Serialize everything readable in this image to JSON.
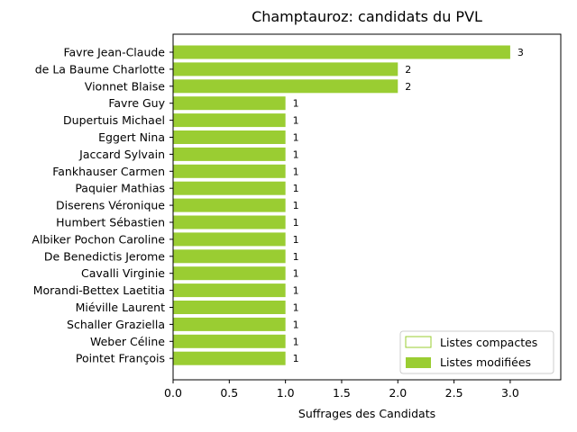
{
  "chart_data": {
    "type": "bar",
    "orientation": "horizontal",
    "title": "Champtauroz: candidats du PVL",
    "xlabel": "Suffrages des Candidats",
    "ylabel": "",
    "xlim": [
      0,
      3.45
    ],
    "xticks": [
      "0.0",
      "0.5",
      "1.0",
      "1.5",
      "2.0",
      "2.5",
      "3.0"
    ],
    "grid": false,
    "legend_position": "lower-right",
    "categories": [
      "Favre Jean-Claude",
      "de La Baume Charlotte",
      "Vionnet Blaise",
      "Favre Guy",
      "Dupertuis Michael",
      "Eggert Nina",
      "Jaccard Sylvain",
      "Fankhauser Carmen",
      "Paquier Mathias",
      "Diserens Véronique",
      "Humbert Sébastien",
      "Albiker Pochon Caroline",
      "De Benedictis Jerome",
      "Cavalli Virginie",
      "Morandi-Bettex Laetitia",
      "Miéville Laurent",
      "Schaller Graziella",
      "Weber Céline",
      "Pointet François"
    ],
    "series": [
      {
        "name": "Listes compactes",
        "color": "#9ACD32",
        "style": "outline",
        "values": [
          0,
          0,
          0,
          0,
          0,
          0,
          0,
          0,
          0,
          0,
          0,
          0,
          0,
          0,
          0,
          0,
          0,
          0,
          0
        ]
      },
      {
        "name": "Listes modifiées",
        "color": "#9ACD32",
        "style": "filled",
        "values": [
          3,
          2,
          2,
          1,
          1,
          1,
          1,
          1,
          1,
          1,
          1,
          1,
          1,
          1,
          1,
          1,
          1,
          1,
          1
        ]
      }
    ],
    "data_labels": [
      "3",
      "2",
      "2",
      "1",
      "1",
      "1",
      "1",
      "1",
      "1",
      "1",
      "1",
      "1",
      "1",
      "1",
      "1",
      "1",
      "1",
      "1",
      "1"
    ]
  }
}
